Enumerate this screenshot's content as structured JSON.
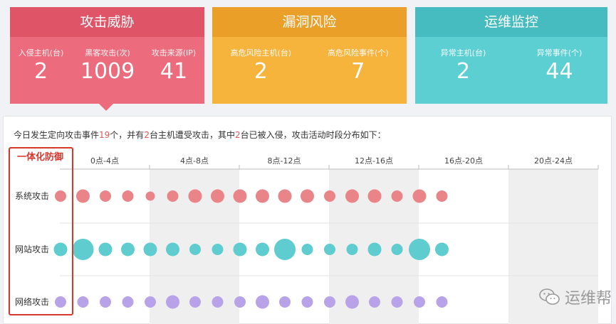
{
  "cards": [
    {
      "title": "攻击威胁",
      "stats": [
        {
          "label": "入侵主机(台)",
          "value": "2"
        },
        {
          "label": "黑客攻击(次)",
          "value": "1009"
        },
        {
          "label": "攻击来源(IP)",
          "value": "41"
        }
      ]
    },
    {
      "title": "漏洞风险",
      "stats": [
        {
          "label": "高危风险主机(台)",
          "value": "2"
        },
        {
          "label": "高危风险事件(个)",
          "value": "7"
        }
      ]
    },
    {
      "title": "运维监控",
      "stats": [
        {
          "label": "异常主机(台)",
          "value": "2"
        },
        {
          "label": "异常事件(个)",
          "value": "44"
        }
      ]
    }
  ],
  "summary": {
    "p1": "今日发生定向攻击事件",
    "events": "19",
    "p2": "个，并有",
    "hosts": "2",
    "p3": "台主机遭受攻击，其中",
    "invaded": "2",
    "p4": "台已被入侵，攻击活动时段分布如下："
  },
  "annotation": "一体化防御",
  "watermark": "运维帮",
  "colors": {
    "system": "#e98488",
    "web": "#5fcccf",
    "network": "#b9a3e8"
  },
  "chart_data": {
    "type": "scatter",
    "periods": [
      "0点-4点",
      "4点-8点",
      "8点-12点",
      "12点-16点",
      "16点-20点",
      "20点-24点"
    ],
    "rows": [
      {
        "name": "系统攻击",
        "sizes": [
          2,
          3,
          2,
          2,
          1,
          2,
          3,
          3,
          3,
          3,
          3,
          3,
          2,
          3,
          3,
          2,
          3,
          2
        ]
      },
      {
        "name": "网站攻击",
        "sizes": [
          3,
          5,
          3,
          3,
          3,
          3,
          2,
          2,
          3,
          3,
          5,
          2,
          2,
          2,
          3,
          2,
          5,
          3
        ]
      },
      {
        "name": "网络攻击",
        "sizes": [
          2,
          2,
          2,
          2,
          2,
          3,
          2,
          2,
          2,
          3,
          2,
          2,
          2,
          3,
          2,
          2,
          2,
          2
        ]
      }
    ]
  }
}
